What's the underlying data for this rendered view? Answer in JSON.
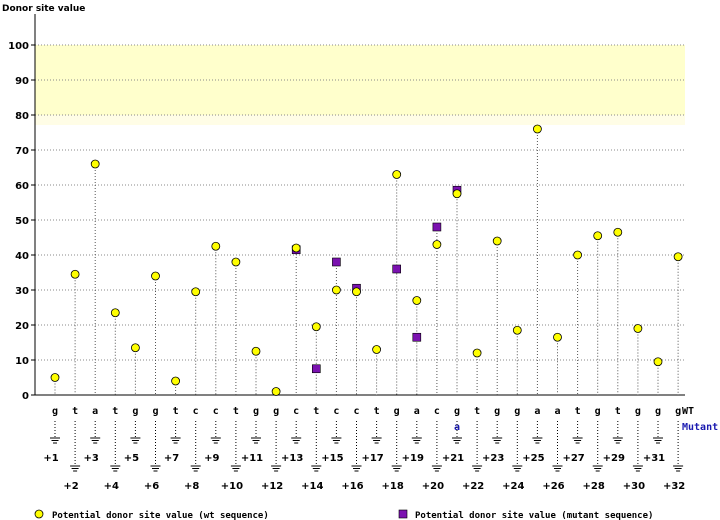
{
  "chart_data": {
    "type": "scatter",
    "title": "",
    "ylabel": "Donor site value",
    "ylim": [
      0,
      100
    ],
    "yticks": [
      0,
      10,
      20,
      30,
      40,
      50,
      60,
      70,
      80,
      90,
      100
    ],
    "highlight_band": [
      80,
      100
    ],
    "grid": true,
    "wt_sequence": [
      "g",
      "t",
      "a",
      "t",
      "g",
      "g",
      "t",
      "c",
      "c",
      "t",
      "g",
      "g",
      "c",
      "t",
      "c",
      "c",
      "t",
      "g",
      "a",
      "c",
      "g",
      "t",
      "g",
      "g",
      "a",
      "a",
      "t",
      "g",
      "t",
      "g",
      "g",
      "g"
    ],
    "mutant_bases": [
      {
        "index": 20,
        "base": "a"
      }
    ],
    "row_labels": {
      "wt": "WT",
      "mutant": "Mutant"
    },
    "positions": [
      "+1",
      "+2",
      "+3",
      "+4",
      "+5",
      "+6",
      "+7",
      "+8",
      "+9",
      "+10",
      "+11",
      "+12",
      "+13",
      "+14",
      "+15",
      "+16",
      "+17",
      "+18",
      "+19",
      "+20",
      "+21",
      "+22",
      "+23",
      "+24",
      "+25",
      "+26",
      "+27",
      "+28",
      "+29",
      "+30",
      "+31",
      "+32"
    ],
    "series": [
      {
        "name": "Potential donor site value (wt sequence)",
        "marker": "circle",
        "color": "#ffff00",
        "values": [
          5,
          34.5,
          66,
          23.5,
          13.5,
          34,
          4,
          29.5,
          42.5,
          38,
          12.5,
          1,
          42,
          19.5,
          30,
          29.5,
          13,
          63,
          27,
          43,
          57.5,
          12,
          44,
          18.5,
          76,
          16.5,
          40,
          45.5,
          46.5,
          19,
          9.5,
          39.5
        ]
      },
      {
        "name": "Potential donor site value (mutant sequence)",
        "marker": "square",
        "color": "#7b12b0",
        "values": [
          null,
          null,
          null,
          null,
          null,
          null,
          null,
          null,
          null,
          null,
          null,
          null,
          41.5,
          7.5,
          38,
          30.5,
          null,
          36,
          16.5,
          48,
          58.5,
          null,
          null,
          null,
          null,
          null,
          null,
          null,
          null,
          null,
          null,
          null
        ]
      }
    ]
  }
}
